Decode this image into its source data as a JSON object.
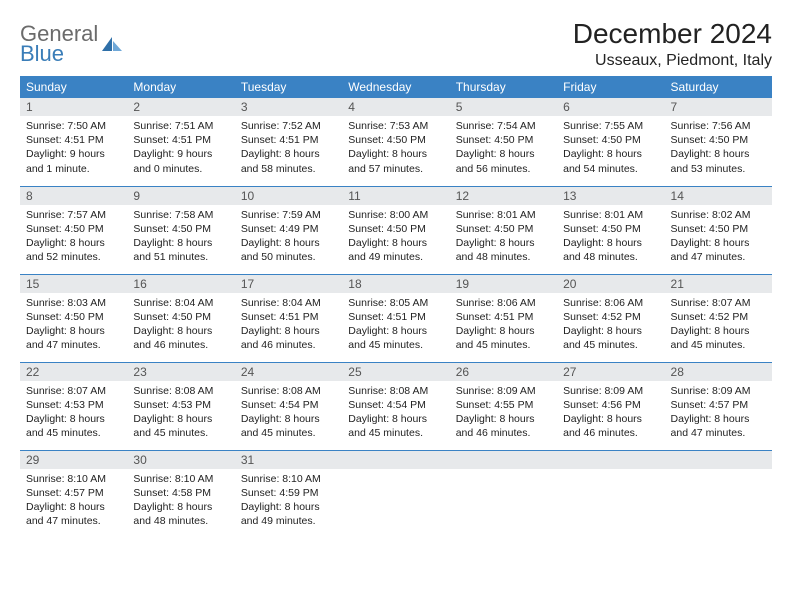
{
  "brand": {
    "word1": "General",
    "word2": "Blue"
  },
  "title": "December 2024",
  "location": "Usseaux, Piedmont, Italy",
  "colors": {
    "header_bg": "#3a82c4",
    "daynum_bg": "#e7e9eb",
    "border": "#3a82c4",
    "logo_gray": "#6b6b6b",
    "logo_blue": "#3a7db8"
  },
  "weekdays": [
    "Sunday",
    "Monday",
    "Tuesday",
    "Wednesday",
    "Thursday",
    "Friday",
    "Saturday"
  ],
  "weeks": [
    [
      {
        "n": "1",
        "sr": "Sunrise: 7:50 AM",
        "ss": "Sunset: 4:51 PM",
        "dl": "Daylight: 9 hours and 1 minute."
      },
      {
        "n": "2",
        "sr": "Sunrise: 7:51 AM",
        "ss": "Sunset: 4:51 PM",
        "dl": "Daylight: 9 hours and 0 minutes."
      },
      {
        "n": "3",
        "sr": "Sunrise: 7:52 AM",
        "ss": "Sunset: 4:51 PM",
        "dl": "Daylight: 8 hours and 58 minutes."
      },
      {
        "n": "4",
        "sr": "Sunrise: 7:53 AM",
        "ss": "Sunset: 4:50 PM",
        "dl": "Daylight: 8 hours and 57 minutes."
      },
      {
        "n": "5",
        "sr": "Sunrise: 7:54 AM",
        "ss": "Sunset: 4:50 PM",
        "dl": "Daylight: 8 hours and 56 minutes."
      },
      {
        "n": "6",
        "sr": "Sunrise: 7:55 AM",
        "ss": "Sunset: 4:50 PM",
        "dl": "Daylight: 8 hours and 54 minutes."
      },
      {
        "n": "7",
        "sr": "Sunrise: 7:56 AM",
        "ss": "Sunset: 4:50 PM",
        "dl": "Daylight: 8 hours and 53 minutes."
      }
    ],
    [
      {
        "n": "8",
        "sr": "Sunrise: 7:57 AM",
        "ss": "Sunset: 4:50 PM",
        "dl": "Daylight: 8 hours and 52 minutes."
      },
      {
        "n": "9",
        "sr": "Sunrise: 7:58 AM",
        "ss": "Sunset: 4:50 PM",
        "dl": "Daylight: 8 hours and 51 minutes."
      },
      {
        "n": "10",
        "sr": "Sunrise: 7:59 AM",
        "ss": "Sunset: 4:49 PM",
        "dl": "Daylight: 8 hours and 50 minutes."
      },
      {
        "n": "11",
        "sr": "Sunrise: 8:00 AM",
        "ss": "Sunset: 4:50 PM",
        "dl": "Daylight: 8 hours and 49 minutes."
      },
      {
        "n": "12",
        "sr": "Sunrise: 8:01 AM",
        "ss": "Sunset: 4:50 PM",
        "dl": "Daylight: 8 hours and 48 minutes."
      },
      {
        "n": "13",
        "sr": "Sunrise: 8:01 AM",
        "ss": "Sunset: 4:50 PM",
        "dl": "Daylight: 8 hours and 48 minutes."
      },
      {
        "n": "14",
        "sr": "Sunrise: 8:02 AM",
        "ss": "Sunset: 4:50 PM",
        "dl": "Daylight: 8 hours and 47 minutes."
      }
    ],
    [
      {
        "n": "15",
        "sr": "Sunrise: 8:03 AM",
        "ss": "Sunset: 4:50 PM",
        "dl": "Daylight: 8 hours and 47 minutes."
      },
      {
        "n": "16",
        "sr": "Sunrise: 8:04 AM",
        "ss": "Sunset: 4:50 PM",
        "dl": "Daylight: 8 hours and 46 minutes."
      },
      {
        "n": "17",
        "sr": "Sunrise: 8:04 AM",
        "ss": "Sunset: 4:51 PM",
        "dl": "Daylight: 8 hours and 46 minutes."
      },
      {
        "n": "18",
        "sr": "Sunrise: 8:05 AM",
        "ss": "Sunset: 4:51 PM",
        "dl": "Daylight: 8 hours and 45 minutes."
      },
      {
        "n": "19",
        "sr": "Sunrise: 8:06 AM",
        "ss": "Sunset: 4:51 PM",
        "dl": "Daylight: 8 hours and 45 minutes."
      },
      {
        "n": "20",
        "sr": "Sunrise: 8:06 AM",
        "ss": "Sunset: 4:52 PM",
        "dl": "Daylight: 8 hours and 45 minutes."
      },
      {
        "n": "21",
        "sr": "Sunrise: 8:07 AM",
        "ss": "Sunset: 4:52 PM",
        "dl": "Daylight: 8 hours and 45 minutes."
      }
    ],
    [
      {
        "n": "22",
        "sr": "Sunrise: 8:07 AM",
        "ss": "Sunset: 4:53 PM",
        "dl": "Daylight: 8 hours and 45 minutes."
      },
      {
        "n": "23",
        "sr": "Sunrise: 8:08 AM",
        "ss": "Sunset: 4:53 PM",
        "dl": "Daylight: 8 hours and 45 minutes."
      },
      {
        "n": "24",
        "sr": "Sunrise: 8:08 AM",
        "ss": "Sunset: 4:54 PM",
        "dl": "Daylight: 8 hours and 45 minutes."
      },
      {
        "n": "25",
        "sr": "Sunrise: 8:08 AM",
        "ss": "Sunset: 4:54 PM",
        "dl": "Daylight: 8 hours and 45 minutes."
      },
      {
        "n": "26",
        "sr": "Sunrise: 8:09 AM",
        "ss": "Sunset: 4:55 PM",
        "dl": "Daylight: 8 hours and 46 minutes."
      },
      {
        "n": "27",
        "sr": "Sunrise: 8:09 AM",
        "ss": "Sunset: 4:56 PM",
        "dl": "Daylight: 8 hours and 46 minutes."
      },
      {
        "n": "28",
        "sr": "Sunrise: 8:09 AM",
        "ss": "Sunset: 4:57 PM",
        "dl": "Daylight: 8 hours and 47 minutes."
      }
    ],
    [
      {
        "n": "29",
        "sr": "Sunrise: 8:10 AM",
        "ss": "Sunset: 4:57 PM",
        "dl": "Daylight: 8 hours and 47 minutes."
      },
      {
        "n": "30",
        "sr": "Sunrise: 8:10 AM",
        "ss": "Sunset: 4:58 PM",
        "dl": "Daylight: 8 hours and 48 minutes."
      },
      {
        "n": "31",
        "sr": "Sunrise: 8:10 AM",
        "ss": "Sunset: 4:59 PM",
        "dl": "Daylight: 8 hours and 49 minutes."
      },
      {
        "n": "",
        "sr": "",
        "ss": "",
        "dl": "",
        "empty": true
      },
      {
        "n": "",
        "sr": "",
        "ss": "",
        "dl": "",
        "empty": true
      },
      {
        "n": "",
        "sr": "",
        "ss": "",
        "dl": "",
        "empty": true
      },
      {
        "n": "",
        "sr": "",
        "ss": "",
        "dl": "",
        "empty": true
      }
    ]
  ]
}
